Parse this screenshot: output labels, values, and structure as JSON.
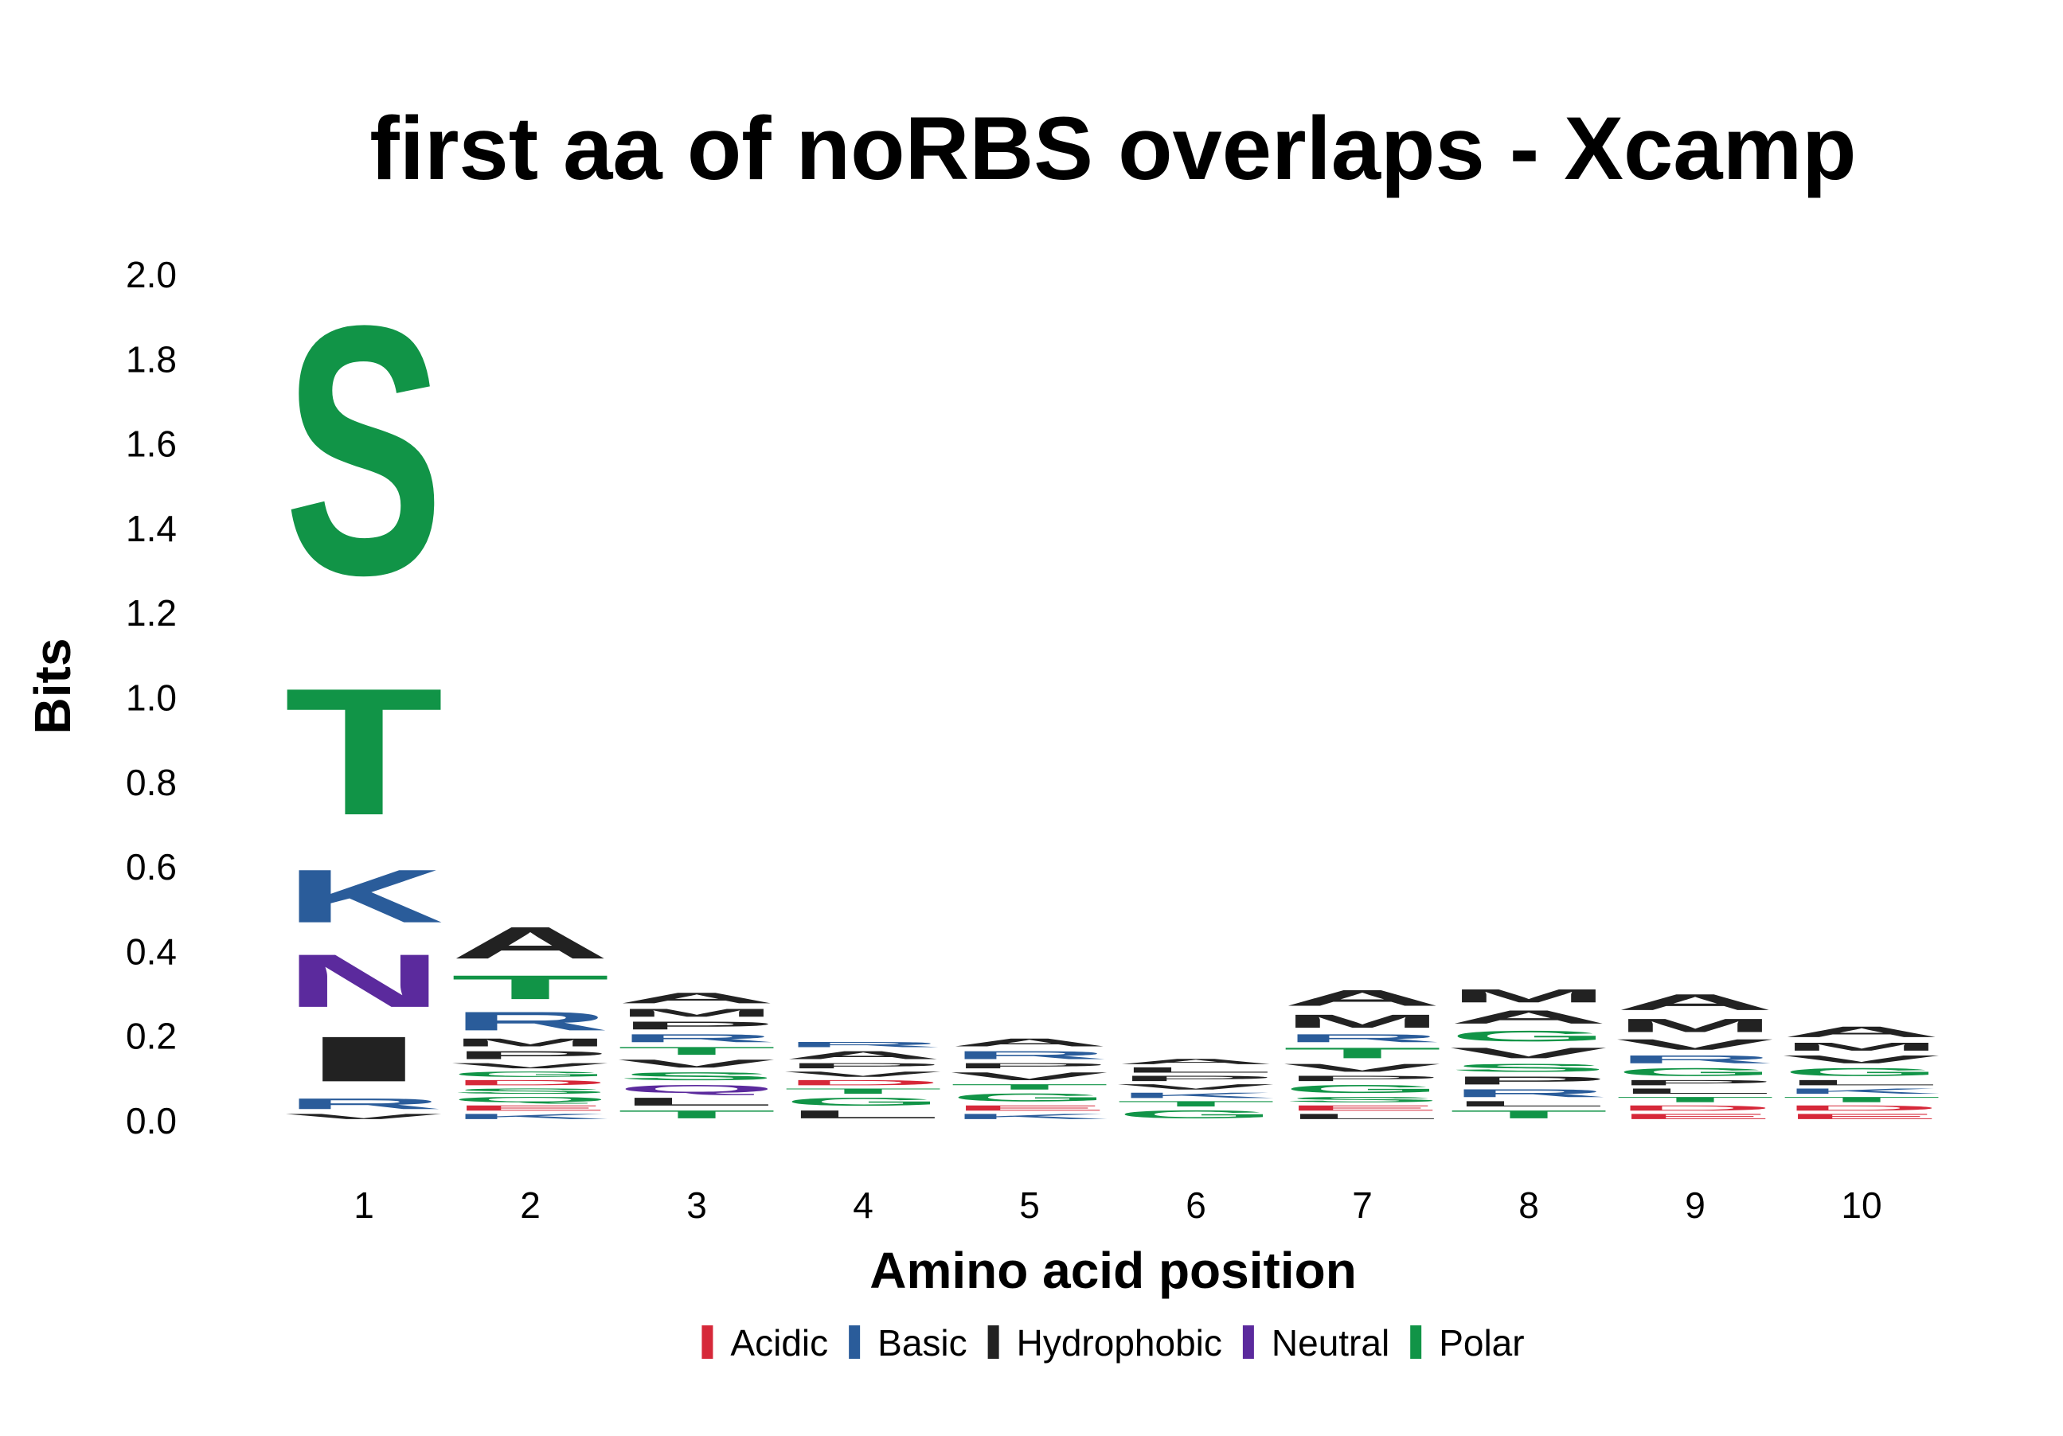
{
  "chart_data": {
    "type": "sequence_logo",
    "title": "first aa of noRBS overlaps - Xcamp",
    "xlabel": "Amino acid position",
    "ylabel": "Bits",
    "ylim": [
      0,
      2.0
    ],
    "yticks": [
      "0.0",
      "0.2",
      "0.4",
      "0.6",
      "0.8",
      "1.0",
      "1.2",
      "1.4",
      "1.6",
      "1.8",
      "2.0"
    ],
    "categories": [
      "1",
      "2",
      "3",
      "4",
      "5",
      "6",
      "7",
      "8",
      "9",
      "10"
    ],
    "grid": false,
    "legend_position": "bottom",
    "colors": {
      "Acidic": "#d62839",
      "Basic": "#2a5c9a",
      "Hydrophobic": "#222222",
      "Neutral": "#5b2a9d",
      "Polar": "#119447"
    },
    "legend": [
      {
        "label": "Acidic",
        "class": "Acidic"
      },
      {
        "label": "Basic",
        "class": "Basic"
      },
      {
        "label": "Hydrophobic",
        "class": "Hydrophobic"
      },
      {
        "label": "Neutral",
        "class": "Neutral"
      },
      {
        "label": "Polar",
        "class": "Polar"
      }
    ],
    "positions": [
      {
        "position": "1",
        "letters": [
          {
            "aa": "V",
            "class": "Hydrophobic",
            "bits": 0.02
          },
          {
            "aa": "R",
            "class": "Basic",
            "bits": 0.04
          },
          {
            "aa": "I",
            "class": "Hydrophobic",
            "bits": 0.17
          },
          {
            "aa": "N",
            "class": "Neutral",
            "bits": 0.2
          },
          {
            "aa": "K",
            "class": "Basic",
            "bits": 0.2
          },
          {
            "aa": "T",
            "class": "Polar",
            "bits": 0.48
          },
          {
            "aa": "S",
            "class": "Polar",
            "bits": 0.94
          }
        ]
      },
      {
        "position": "2",
        "letters": [
          {
            "aa": "K",
            "class": "Basic",
            "bits": 0.02
          },
          {
            "aa": "E",
            "class": "Acidic",
            "bits": 0.02
          },
          {
            "aa": "Q",
            "class": "Polar",
            "bits": 0.02
          },
          {
            "aa": "S",
            "class": "Polar",
            "bits": 0.02
          },
          {
            "aa": "D",
            "class": "Acidic",
            "bits": 0.02
          },
          {
            "aa": "G",
            "class": "Polar",
            "bits": 0.02
          },
          {
            "aa": "V",
            "class": "Hydrophobic",
            "bits": 0.02
          },
          {
            "aa": "P",
            "class": "Hydrophobic",
            "bits": 0.03
          },
          {
            "aa": "M",
            "class": "Hydrophobic",
            "bits": 0.03
          },
          {
            "aa": "R",
            "class": "Basic",
            "bits": 0.07
          },
          {
            "aa": "T",
            "class": "Polar",
            "bits": 0.09
          },
          {
            "aa": "A",
            "class": "Hydrophobic",
            "bits": 0.12
          }
        ]
      },
      {
        "position": "3",
        "letters": [
          {
            "aa": "T",
            "class": "Polar",
            "bits": 0.03
          },
          {
            "aa": "L",
            "class": "Hydrophobic",
            "bits": 0.03
          },
          {
            "aa": "Q",
            "class": "Neutral",
            "bits": 0.03
          },
          {
            "aa": "S",
            "class": "Polar",
            "bits": 0.03
          },
          {
            "aa": "V",
            "class": "Hydrophobic",
            "bits": 0.03
          },
          {
            "aa": "T",
            "class": "Polar",
            "bits": 0.03
          },
          {
            "aa": "R",
            "class": "Basic",
            "bits": 0.03
          },
          {
            "aa": "P",
            "class": "Hydrophobic",
            "bits": 0.03
          },
          {
            "aa": "M",
            "class": "Hydrophobic",
            "bits": 0.03
          },
          {
            "aa": "A",
            "class": "Hydrophobic",
            "bits": 0.04
          }
        ]
      },
      {
        "position": "4",
        "letters": [
          {
            "aa": "L",
            "class": "Hydrophobic",
            "bits": 0.03
          },
          {
            "aa": "G",
            "class": "Polar",
            "bits": 0.03
          },
          {
            "aa": "T",
            "class": "Polar",
            "bits": 0.02
          },
          {
            "aa": "D",
            "class": "Acidic",
            "bits": 0.02
          },
          {
            "aa": "V",
            "class": "Hydrophobic",
            "bits": 0.02
          },
          {
            "aa": "P",
            "class": "Hydrophobic",
            "bits": 0.02
          },
          {
            "aa": "A",
            "class": "Hydrophobic",
            "bits": 0.03
          },
          {
            "aa": "R",
            "class": "Basic",
            "bits": 0.02
          }
        ]
      },
      {
        "position": "5",
        "letters": [
          {
            "aa": "K",
            "class": "Basic",
            "bits": 0.02
          },
          {
            "aa": "E",
            "class": "Acidic",
            "bits": 0.02
          },
          {
            "aa": "G",
            "class": "Polar",
            "bits": 0.03
          },
          {
            "aa": "T",
            "class": "Polar",
            "bits": 0.02
          },
          {
            "aa": "V",
            "class": "Hydrophobic",
            "bits": 0.03
          },
          {
            "aa": "P",
            "class": "Hydrophobic",
            "bits": 0.02
          },
          {
            "aa": "R",
            "class": "Basic",
            "bits": 0.03
          },
          {
            "aa": "A",
            "class": "Hydrophobic",
            "bits": 0.03
          }
        ]
      },
      {
        "position": "6",
        "letters": [
          {
            "aa": "G",
            "class": "Polar",
            "bits": 0.03
          },
          {
            "aa": "T",
            "class": "Polar",
            "bits": 0.02
          },
          {
            "aa": "K",
            "class": "Basic",
            "bits": 0.02
          },
          {
            "aa": "V",
            "class": "Hydrophobic",
            "bits": 0.02
          },
          {
            "aa": "P",
            "class": "Hydrophobic",
            "bits": 0.02
          },
          {
            "aa": "L",
            "class": "Hydrophobic",
            "bits": 0.02
          },
          {
            "aa": "A",
            "class": "Hydrophobic",
            "bits": 0.02
          }
        ]
      },
      {
        "position": "7",
        "letters": [
          {
            "aa": "L",
            "class": "Hydrophobic",
            "bits": 0.02
          },
          {
            "aa": "E",
            "class": "Acidic",
            "bits": 0.02
          },
          {
            "aa": "S",
            "class": "Polar",
            "bits": 0.02
          },
          {
            "aa": "G",
            "class": "Polar",
            "bits": 0.03
          },
          {
            "aa": "P",
            "class": "Hydrophobic",
            "bits": 0.02
          },
          {
            "aa": "V",
            "class": "Hydrophobic",
            "bits": 0.03
          },
          {
            "aa": "T",
            "class": "Polar",
            "bits": 0.04
          },
          {
            "aa": "R",
            "class": "Basic",
            "bits": 0.03
          },
          {
            "aa": "M",
            "class": "Hydrophobic",
            "bits": 0.05
          },
          {
            "aa": "A",
            "class": "Hydrophobic",
            "bits": 0.06
          }
        ]
      },
      {
        "position": "8",
        "letters": [
          {
            "aa": "T",
            "class": "Polar",
            "bits": 0.03
          },
          {
            "aa": "L",
            "class": "Hydrophobic",
            "bits": 0.02
          },
          {
            "aa": "R",
            "class": "Basic",
            "bits": 0.03
          },
          {
            "aa": "P",
            "class": "Hydrophobic",
            "bits": 0.03
          },
          {
            "aa": "S",
            "class": "Polar",
            "bits": 0.03
          },
          {
            "aa": "V",
            "class": "Hydrophobic",
            "bits": 0.04
          },
          {
            "aa": "G",
            "class": "Polar",
            "bits": 0.04
          },
          {
            "aa": "A",
            "class": "Hydrophobic",
            "bits": 0.05
          },
          {
            "aa": "M",
            "class": "Hydrophobic",
            "bits": 0.05
          }
        ]
      },
      {
        "position": "9",
        "letters": [
          {
            "aa": "E",
            "class": "Acidic",
            "bits": 0.02
          },
          {
            "aa": "D",
            "class": "Acidic",
            "bits": 0.02
          },
          {
            "aa": "T",
            "class": "Polar",
            "bits": 0.02
          },
          {
            "aa": "L",
            "class": "Hydrophobic",
            "bits": 0.02
          },
          {
            "aa": "P",
            "class": "Hydrophobic",
            "bits": 0.02
          },
          {
            "aa": "G",
            "class": "Polar",
            "bits": 0.03
          },
          {
            "aa": "R",
            "class": "Basic",
            "bits": 0.03
          },
          {
            "aa": "V",
            "class": "Hydrophobic",
            "bits": 0.04
          },
          {
            "aa": "M",
            "class": "Hydrophobic",
            "bits": 0.05
          },
          {
            "aa": "A",
            "class": "Hydrophobic",
            "bits": 0.06
          }
        ]
      },
      {
        "position": "10",
        "letters": [
          {
            "aa": "E",
            "class": "Acidic",
            "bits": 0.02
          },
          {
            "aa": "D",
            "class": "Acidic",
            "bits": 0.02
          },
          {
            "aa": "T",
            "class": "Polar",
            "bits": 0.02
          },
          {
            "aa": "K",
            "class": "Basic",
            "bits": 0.02
          },
          {
            "aa": "L",
            "class": "Hydrophobic",
            "bits": 0.02
          },
          {
            "aa": "G",
            "class": "Polar",
            "bits": 0.03
          },
          {
            "aa": "V",
            "class": "Hydrophobic",
            "bits": 0.03
          },
          {
            "aa": "M",
            "class": "Hydrophobic",
            "bits": 0.03
          },
          {
            "aa": "A",
            "class": "Hydrophobic",
            "bits": 0.04
          }
        ]
      }
    ]
  }
}
